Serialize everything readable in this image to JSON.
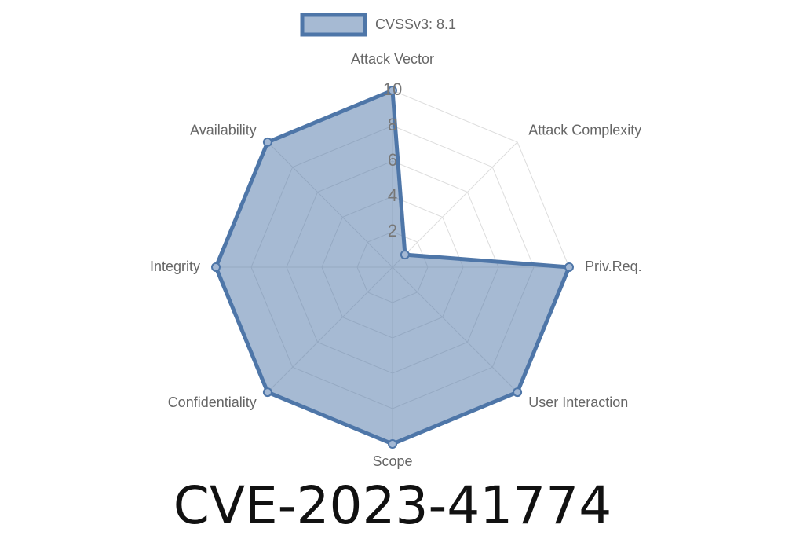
{
  "chart_data": {
    "type": "radar",
    "title": "CVE-2023-41774",
    "categories": [
      "Attack Vector",
      "Attack Complexity",
      "Priv.Req.",
      "User Interaction",
      "Scope",
      "Confidentiality",
      "Integrity",
      "Availability"
    ],
    "series": [
      {
        "name": "CVSSv3: 8.1",
        "color": "#4e76a8",
        "values": [
          10,
          1,
          10,
          10,
          10,
          10,
          10,
          10
        ]
      }
    ],
    "ylim": [
      0,
      10
    ],
    "yticks": [
      2,
      4,
      6,
      8,
      10
    ],
    "grid": true,
    "legend": "top"
  }
}
